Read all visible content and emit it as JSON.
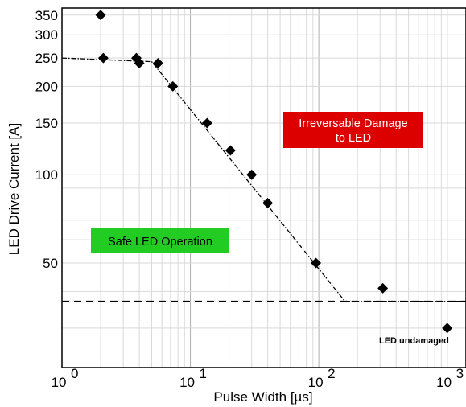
{
  "chart_data": {
    "type": "scatter",
    "xlabel": "Pulse Width  [µs]",
    "ylabel": "LED Drive Current  [A]",
    "x_scale": "log",
    "y_scale": "log",
    "xlim": [
      1,
      1400
    ],
    "ylim": [
      22,
      370
    ],
    "grid": true,
    "x_ticks": [
      {
        "value": 1,
        "base": "10",
        "exp": "0"
      },
      {
        "value": 10,
        "base": "10",
        "exp": "1"
      },
      {
        "value": 100,
        "base": "10",
        "exp": "2"
      },
      {
        "value": 1000,
        "base": "10",
        "exp": "3"
      }
    ],
    "y_ticks": [
      {
        "value": 350,
        "label": "350"
      },
      {
        "value": 300,
        "label": "300"
      },
      {
        "value": 250,
        "label": "250"
      },
      {
        "value": 200,
        "label": "200"
      },
      {
        "value": 150,
        "label": "150"
      },
      {
        "value": 100,
        "label": "100"
      },
      {
        "value": 50,
        "label": "50"
      }
    ],
    "points": [
      {
        "x": 2.0,
        "y": 350
      },
      {
        "x": 2.1,
        "y": 250
      },
      {
        "x": 3.8,
        "y": 250
      },
      {
        "x": 4.0,
        "y": 240
      },
      {
        "x": 5.6,
        "y": 240
      },
      {
        "x": 7.3,
        "y": 200
      },
      {
        "x": 13.5,
        "y": 150
      },
      {
        "x": 20.5,
        "y": 121
      },
      {
        "x": 30,
        "y": 100
      },
      {
        "x": 40,
        "y": 80
      },
      {
        "x": 95,
        "y": 50
      },
      {
        "x": 315,
        "y": 41
      },
      {
        "x": 1000,
        "y": 30
      }
    ],
    "damage_threshold_curve": [
      {
        "x": 1,
        "y": 250
      },
      {
        "x": 5,
        "y": 243
      },
      {
        "x": 160,
        "y": 37
      },
      {
        "x": 1400,
        "y": 37
      }
    ],
    "dashed_level": 37,
    "annotations": {
      "damage_region": [
        "Irreversable Damage",
        "to LED"
      ],
      "safe_region": "Safe LED Operation",
      "point_label": "LED undamaged"
    },
    "colors": {
      "damage_box": "#dd0000",
      "safe_box": "#22cc22",
      "marker": "#000000"
    }
  }
}
